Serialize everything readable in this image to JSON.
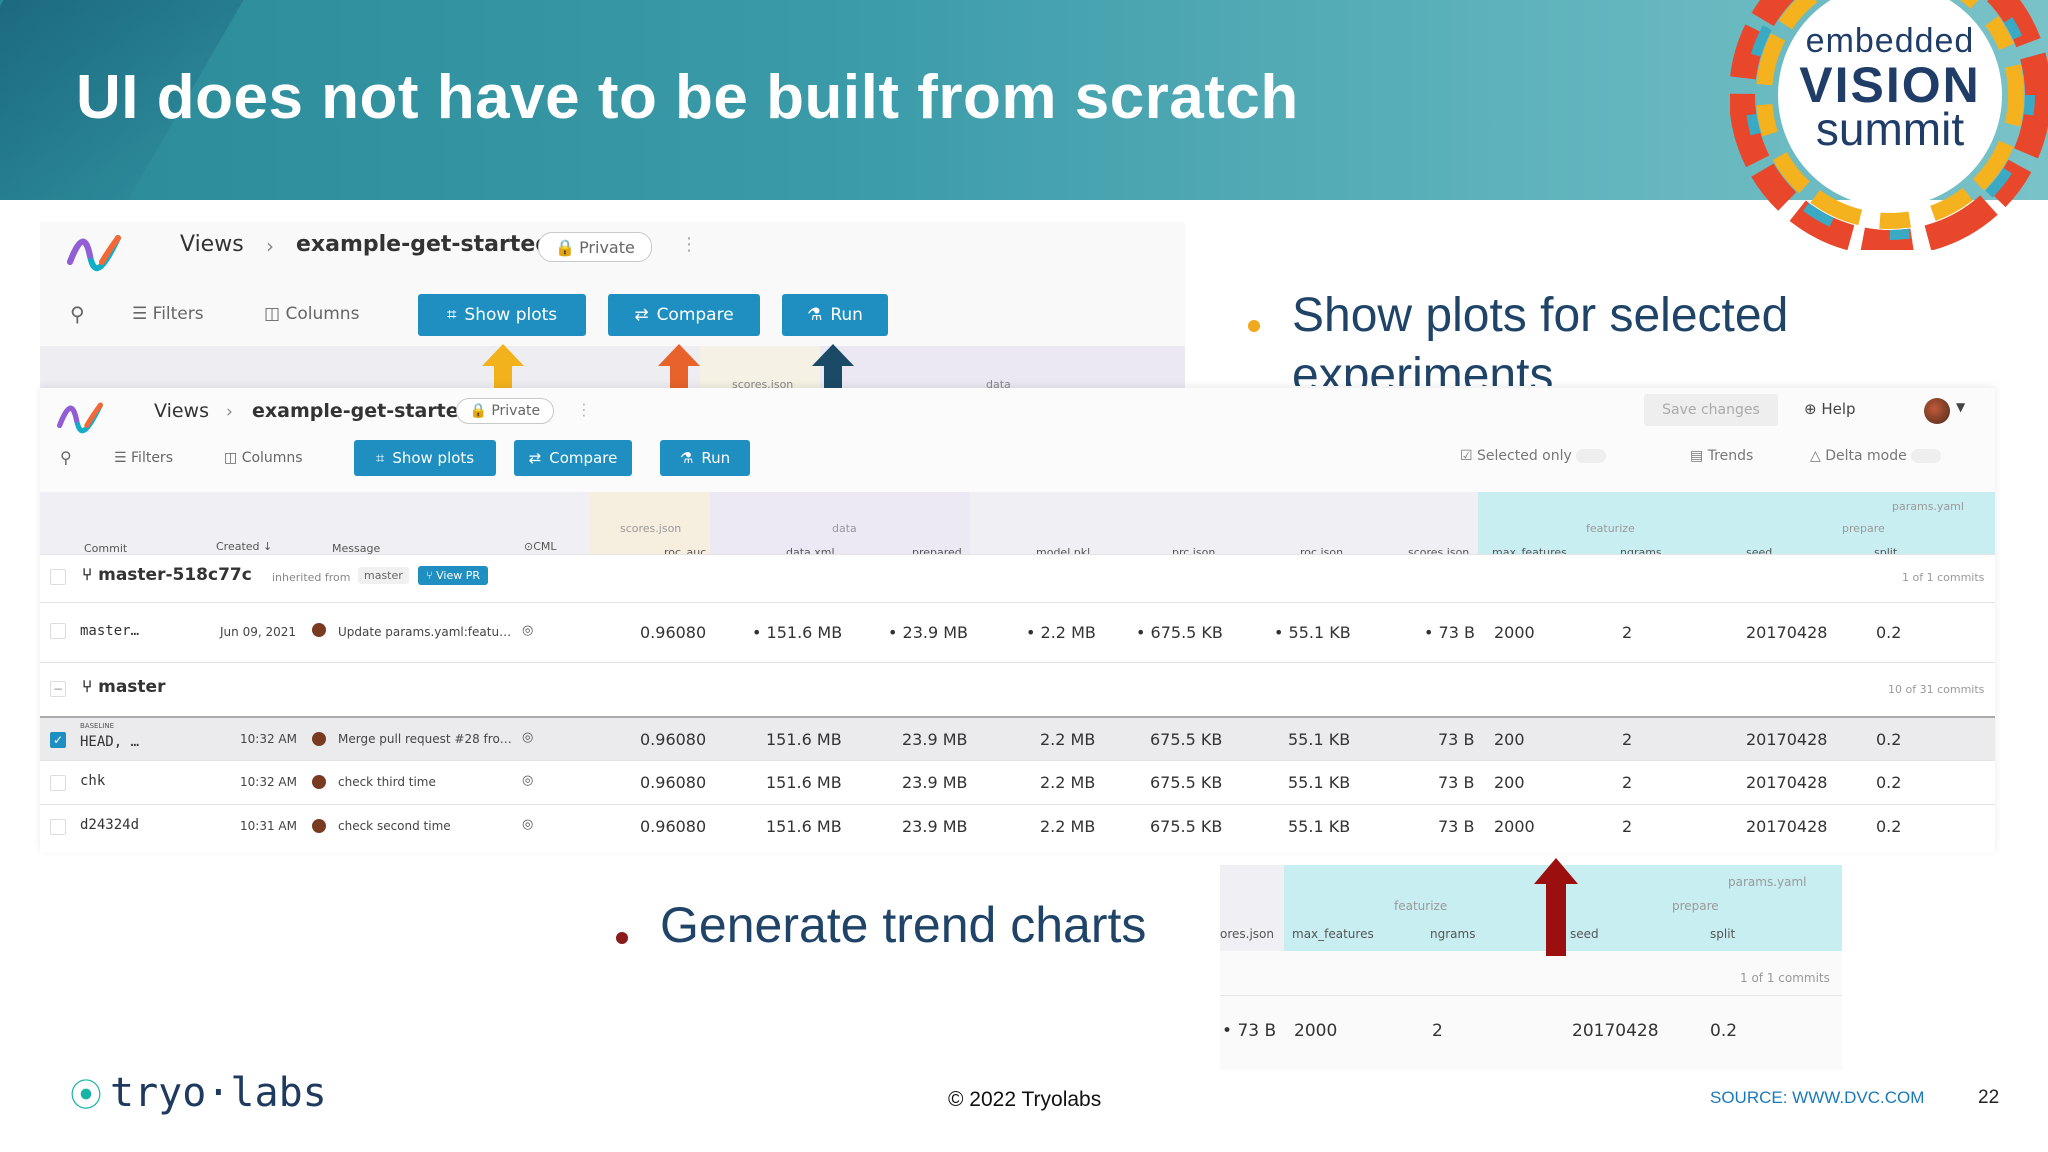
{
  "slide": {
    "title": "UI does not have to be built from scratch",
    "logo": {
      "line1": "embedded",
      "line2": "VISION",
      "line3": "summit"
    },
    "bullets": [
      {
        "text": "Show plots for selected experiments",
        "color": "#f0a81c"
      },
      {
        "text": "Generate trend charts",
        "color": "#8b1a1a"
      }
    ],
    "footer": {
      "brand": "tryo·labs",
      "copyright": "© 2022 Tryolabs",
      "source": "SOURCE: WWW.DVC.COM",
      "page": "22"
    }
  },
  "dvc_top": {
    "breadcrumb_root": "Views",
    "breadcrumb_sep": "›",
    "project": "example-get-started",
    "privacy": "Private",
    "toolbar": {
      "filters": "Filters",
      "columns": "Columns",
      "show_plots": "Show plots",
      "compare": "Compare",
      "run": "Run"
    },
    "peek_headers": [
      "scores.json",
      "data"
    ]
  },
  "dvc_main": {
    "breadcrumb_root": "Views",
    "breadcrumb_sep": "›",
    "project": "example-get-started",
    "privacy": "Private",
    "save_changes": "Save changes",
    "help": "Help",
    "toolbar": {
      "filters": "Filters",
      "columns": "Columns",
      "show_plots": "Show plots",
      "compare": "Compare",
      "run": "Run",
      "selected_only": "Selected only",
      "trends": "Trends",
      "delta_mode": "Delta mode"
    },
    "group_headers": {
      "scores_json": "scores.json",
      "data": "data",
      "params_yaml": "params.yaml",
      "featurize": "featurize",
      "prepare": "prepare"
    },
    "columns": [
      "Commit",
      "Created",
      "Message",
      "CML",
      "roc_auc",
      "data.xml",
      "prepared",
      "model.pkl",
      "prc.json",
      "roc.json",
      "scores.json",
      "max_features",
      "ngrams",
      "seed",
      "split"
    ],
    "branch1": {
      "name": "master-518c77c",
      "inherited": "inherited from",
      "base": "master",
      "view_pr": "View PR",
      "count": "1 of 1 commits"
    },
    "branch1_rows": [
      {
        "commit": "master…",
        "created": "Jun 09, 2021",
        "message": "Update params.yaml:featu…",
        "values": [
          "0.96080",
          "151.6 MB",
          "23.9 MB",
          "2.2 MB",
          "675.5 KB",
          "55.1 KB",
          "73 B",
          "2000",
          "2",
          "20170428",
          "0.2"
        ]
      }
    ],
    "branch2": {
      "name": "master",
      "count": "10 of 31 commits"
    },
    "branch2_rows": [
      {
        "baseline": "BASELINE",
        "commit": "HEAD, …",
        "created": "10:32 AM",
        "message": "Merge pull request #28 fro…",
        "values": [
          "0.96080",
          "151.6 MB",
          "23.9 MB",
          "2.2 MB",
          "675.5 KB",
          "55.1 KB",
          "73 B",
          "200",
          "2",
          "20170428",
          "0.2"
        ],
        "checked": true
      },
      {
        "commit": "chk",
        "created": "10:32 AM",
        "message": "check third time",
        "values": [
          "0.96080",
          "151.6 MB",
          "23.9 MB",
          "2.2 MB",
          "675.5 KB",
          "55.1 KB",
          "73 B",
          "200",
          "2",
          "20170428",
          "0.2"
        ],
        "checked": false
      },
      {
        "commit": "d24324d",
        "created": "10:31 AM",
        "message": "check second time",
        "values": [
          "0.96080",
          "151.6 MB",
          "23.9 MB",
          "2.2 MB",
          "675.5 KB",
          "55.1 KB",
          "73 B",
          "2000",
          "2",
          "20170428",
          "0.2"
        ],
        "checked": false
      }
    ]
  },
  "dvc_zoom": {
    "params_yaml": "params.yaml",
    "featurize": "featurize",
    "prepare": "prepare",
    "columns": [
      "ores.json",
      "max_features",
      "ngrams",
      "seed",
      "split"
    ],
    "count": "1 of 1 commits",
    "values": [
      "73 B",
      "2000",
      "2",
      "20170428",
      "0.2"
    ]
  },
  "arrows": {
    "show_plots": "#f2b21c",
    "compare": "#e8632b",
    "run": "#1b4a66",
    "trends": "#9b0f0f"
  }
}
